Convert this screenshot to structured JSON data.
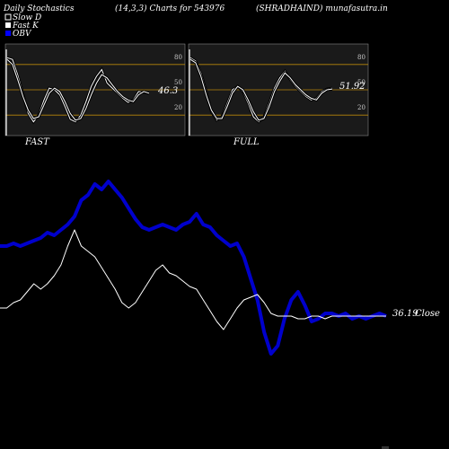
{
  "header": {
    "left": "Daily Stochastics",
    "params": "(14,3,3) Charts for 543976",
    "symbol": "(SHRADHAIND) munafasutra.in"
  },
  "legend": [
    {
      "label": "Slow  D",
      "color": "#000000",
      "border": "#ffffff"
    },
    {
      "label": "Fast K",
      "color": "#ffffff",
      "border": "#ffffff"
    },
    {
      "label": "OBV",
      "color": "#0000ff",
      "border": "#0000ff"
    }
  ],
  "colors": {
    "background": "#000000",
    "panel": "#1a1a1a",
    "band": "#b8860b",
    "obv": "#0000cc",
    "price": "#ffffff",
    "stoch": "#ffffff"
  },
  "chart_data": [
    {
      "type": "line",
      "panel": "fast",
      "label": "FAST",
      "value_label": "46.3",
      "y_ticks": [
        20,
        50,
        80
      ],
      "bands": [
        20,
        50,
        80
      ],
      "ylim": [
        0,
        100
      ],
      "series": [
        {
          "name": "Fast K",
          "values": [
            88,
            86,
            68,
            45,
            22,
            12,
            20,
            38,
            52,
            50,
            44,
            30,
            15,
            12,
            20,
            36,
            54,
            66,
            74,
            58,
            52,
            46,
            40,
            35,
            38,
            48,
            47,
            46
          ]
        },
        {
          "name": "Slow  D",
          "values": [
            86,
            80,
            62,
            42,
            26,
            16,
            18,
            32,
            46,
            52,
            48,
            36,
            22,
            14,
            16,
            28,
            44,
            58,
            68,
            64,
            56,
            48,
            42,
            38,
            36,
            44,
            48,
            46
          ]
        }
      ]
    },
    {
      "type": "line",
      "panel": "full",
      "label": "FULL",
      "value_label": "51.92",
      "y_ticks": [
        20,
        50,
        80
      ],
      "bands": [
        20,
        50,
        80
      ],
      "ylim": [
        0,
        100
      ],
      "series": [
        {
          "name": "Fast K",
          "values": [
            88,
            84,
            70,
            48,
            24,
            14,
            18,
            34,
            50,
            54,
            48,
            34,
            18,
            12,
            18,
            34,
            52,
            64,
            72,
            62,
            54,
            48,
            42,
            38,
            40,
            48,
            51,
            52
          ]
        },
        {
          "name": "Slow  D",
          "values": [
            86,
            82,
            66,
            44,
            26,
            16,
            16,
            30,
            46,
            54,
            50,
            38,
            24,
            14,
            16,
            30,
            48,
            60,
            70,
            64,
            56,
            50,
            44,
            40,
            38,
            46,
            50,
            51
          ]
        }
      ]
    },
    {
      "type": "line",
      "panel": "main",
      "value_label": "36.19",
      "value_suffix": "Close",
      "ylim": [
        0,
        100
      ],
      "series": [
        {
          "name": "OBV",
          "values": [
            62,
            62,
            63,
            62,
            63,
            64,
            65,
            67,
            66,
            68,
            70,
            73,
            79,
            81,
            85,
            83,
            86,
            83,
            80,
            76,
            72,
            69,
            68,
            69,
            70,
            69,
            68,
            70,
            71,
            74,
            70,
            69,
            66,
            64,
            62,
            63,
            58,
            50,
            42,
            30,
            22,
            25,
            35,
            42,
            45,
            40,
            34,
            35,
            37,
            37,
            36,
            37,
            35,
            36,
            35,
            36,
            37,
            36
          ]
        },
        {
          "name": "Close",
          "values": [
            39,
            39,
            41,
            42,
            45,
            48,
            46,
            48,
            51,
            55,
            62,
            68,
            62,
            60,
            58,
            54,
            50,
            46,
            41,
            39,
            41,
            45,
            49,
            53,
            55,
            52,
            51,
            49,
            47,
            46,
            42,
            38,
            34,
            31,
            35,
            39,
            42,
            43,
            44,
            41,
            37,
            36,
            36,
            36,
            35,
            35,
            36,
            36,
            35,
            36,
            36,
            36,
            36,
            36,
            36,
            36,
            36,
            36
          ]
        }
      ]
    }
  ]
}
